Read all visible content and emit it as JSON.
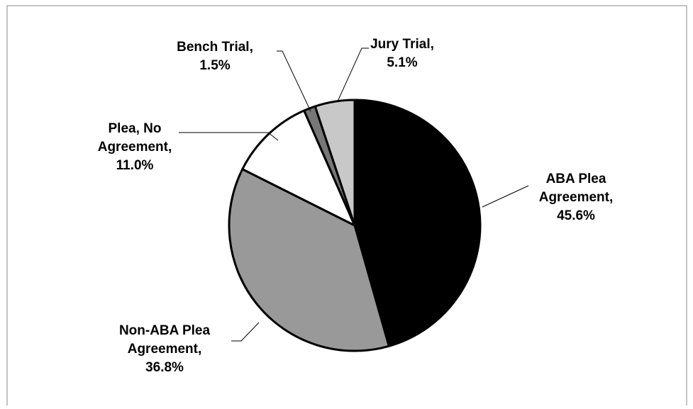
{
  "chart_data": {
    "type": "pie",
    "categories": [
      "ABA Plea Agreement,",
      "Non-ABA Plea Agreement,",
      "Plea, No Agreement,",
      "Bench Trial,",
      "Jury Trial,"
    ],
    "values": [
      45.6,
      36.8,
      11.0,
      1.5,
      5.1
    ],
    "value_labels": [
      "45.6%",
      "36.8%",
      "11.0%",
      "1.5%",
      "5.1%"
    ],
    "colors": [
      "#000000",
      "#999999",
      "#ffffff",
      "#777777",
      "#c8c8c8"
    ]
  }
}
